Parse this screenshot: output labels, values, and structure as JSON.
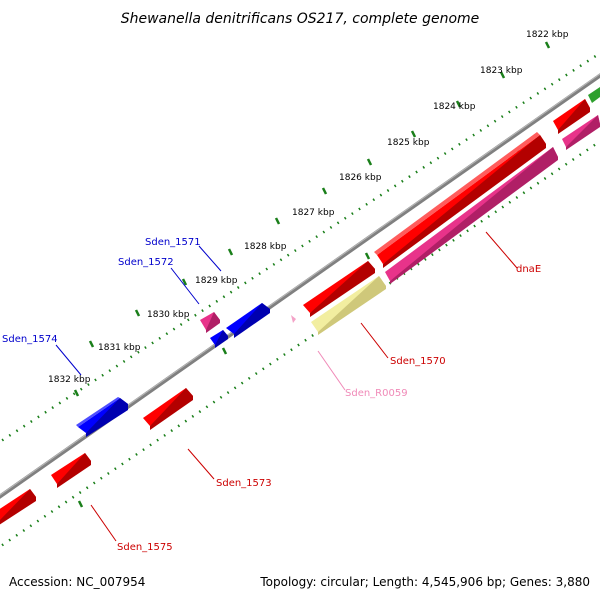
{
  "title": "Shewanella denitrificans OS217, complete genome",
  "footer": {
    "accession": "Accession: NC_007954",
    "summary": "Topology: circular; Length: 4,545,906 bp; Genes: 3,880"
  },
  "colors": {
    "backbone": "#808080",
    "ruler_dash": "#1a7f1a",
    "cds": "#ff0000",
    "cds_blue": "#0000ff",
    "pink": "#e8338a",
    "rrna": "#f2eea0",
    "trna": "#f4a3c8"
  },
  "ruler": {
    "ticks": [
      "1822 kbp",
      "1823 kbp",
      "1824 kbp",
      "1825 kbp",
      "1826 kbp",
      "1827 kbp",
      "1828 kbp",
      "1829 kbp",
      "1830 kbp",
      "1831 kbp",
      "1832 kbp"
    ]
  },
  "labels": [
    {
      "text": "Sden_1571",
      "color": "#0000cc"
    },
    {
      "text": "Sden_1572",
      "color": "#0000cc"
    },
    {
      "text": "Sden_1574",
      "color": "#0000cc"
    },
    {
      "text": "dnaE",
      "color": "#cc0000"
    },
    {
      "text": "Sden_1570",
      "color": "#cc0000"
    },
    {
      "text": "Sden_R0059",
      "color": "#f08ab8"
    },
    {
      "text": "Sden_1573",
      "color": "#cc0000"
    },
    {
      "text": "Sden_1575",
      "color": "#cc0000"
    }
  ]
}
